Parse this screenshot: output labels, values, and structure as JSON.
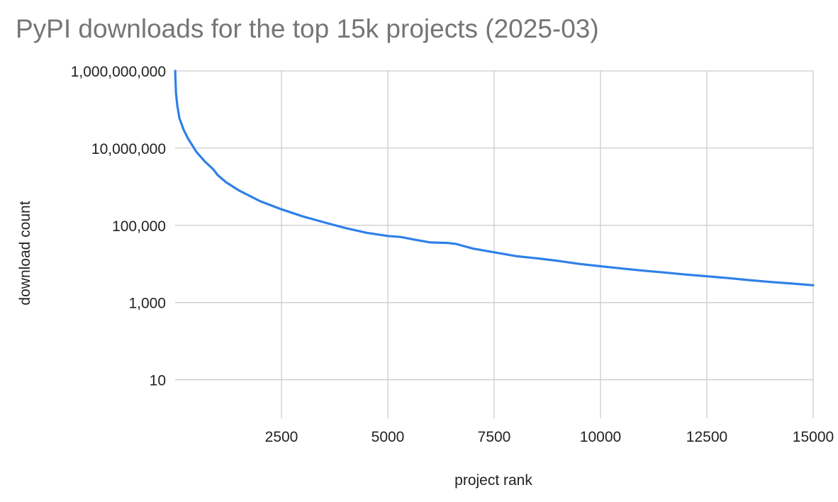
{
  "chart_data": {
    "type": "line",
    "title": "PyPI downloads for the top 15k projects (2025-03)",
    "xlabel": "project rank",
    "ylabel": "download count",
    "xlim": [
      0,
      15000
    ],
    "x_ticks": [
      2500,
      5000,
      7500,
      10000,
      12500,
      15000
    ],
    "y_scale": "log",
    "ylim": [
      1,
      1000000000
    ],
    "y_ticks": [
      10,
      1000,
      100000,
      10000000,
      1000000000
    ],
    "y_tick_labels": [
      "10",
      "1,000",
      "100,000",
      "10,000,000",
      "1,000,000,000"
    ],
    "grid": true,
    "legend": "none",
    "series": [
      {
        "color": "#2f80e8",
        "x": [
          1,
          20,
          50,
          100,
          200,
          300,
          400,
          500,
          700,
          900,
          1000,
          1200,
          1500,
          2000,
          2500,
          3000,
          3500,
          4000,
          4500,
          5000,
          5300,
          5600,
          6000,
          6400,
          6600,
          7000,
          7500,
          8000,
          8500,
          9000,
          9500,
          10000,
          10500,
          11000,
          11500,
          12000,
          12500,
          13000,
          13500,
          14000,
          14500,
          15000
        ],
        "y": [
          1000000000,
          270000000,
          130000000,
          60000000,
          30000000,
          18000000,
          12000000,
          8000000,
          4500000,
          2800000,
          2000000,
          1300000,
          800000,
          420000,
          260000,
          170000,
          120000,
          85000,
          64000,
          53000,
          50000,
          43000,
          36000,
          35000,
          33000,
          25000,
          20000,
          16000,
          14000,
          12000,
          10000,
          8700,
          7600,
          6700,
          6000,
          5300,
          4800,
          4300,
          3800,
          3400,
          3100,
          2800
        ]
      }
    ]
  }
}
